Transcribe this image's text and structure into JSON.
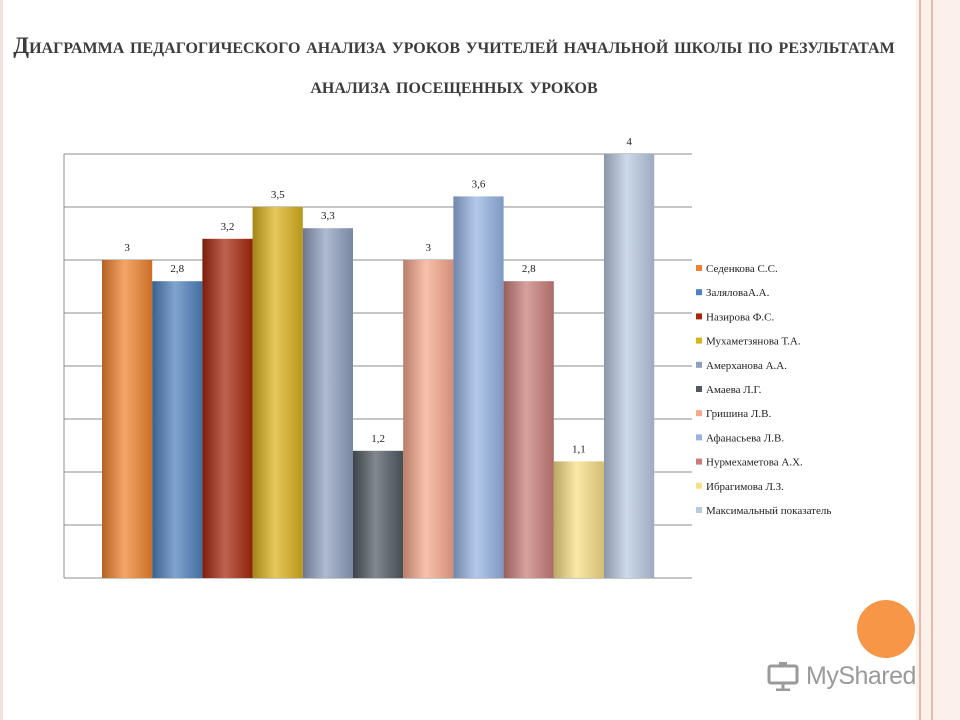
{
  "title": "Диаграмма педагогического анализа уроков учителей начальной школы  по результатам анализа посещенных уроков",
  "watermark": "MyShared",
  "chart_data": {
    "type": "bar",
    "title": "",
    "xlabel": "",
    "ylabel": "",
    "ylim": [
      0,
      4
    ],
    "grid": true,
    "legend_position": "right",
    "series": [
      {
        "name": "Седенкова С.С.",
        "value": 3,
        "label": "3",
        "color": "#f0822d"
      },
      {
        "name": "ЗаляловаА.А.",
        "value": 2.8,
        "label": "2,8",
        "color": "#4f81bd"
      },
      {
        "name": "Назирова Ф.С.",
        "value": 3.2,
        "label": "3,2",
        "color": "#a6270e"
      },
      {
        "name": "Мухаметзянова Т.А.",
        "value": 3.5,
        "label": "3,5",
        "color": "#d9b21c"
      },
      {
        "name": "Амерханова А.А.",
        "value": 3.3,
        "label": "3,3",
        "color": "#8f9fbd"
      },
      {
        "name": "Амаева Л.Г.",
        "value": 1.2,
        "label": "1,2",
        "color": "#505a62"
      },
      {
        "name": "Гришина Л.В.",
        "value": 3,
        "label": "3",
        "color": "#f7a88c"
      },
      {
        "name": "Афанасьева Л.В.",
        "value": 3.6,
        "label": "3,6",
        "color": "#95b3e3"
      },
      {
        "name": "Нурмехаметова А.Х.",
        "value": 2.8,
        "label": "2,8",
        "color": "#c97d78"
      },
      {
        "name": "Ибрагимова Л.З.",
        "value": 1.1,
        "label": "1,1",
        "color": "#f8df85"
      },
      {
        "name": "Максимальный показатель",
        "value": 4,
        "label": "4",
        "color": "#b9c9e2"
      }
    ]
  }
}
